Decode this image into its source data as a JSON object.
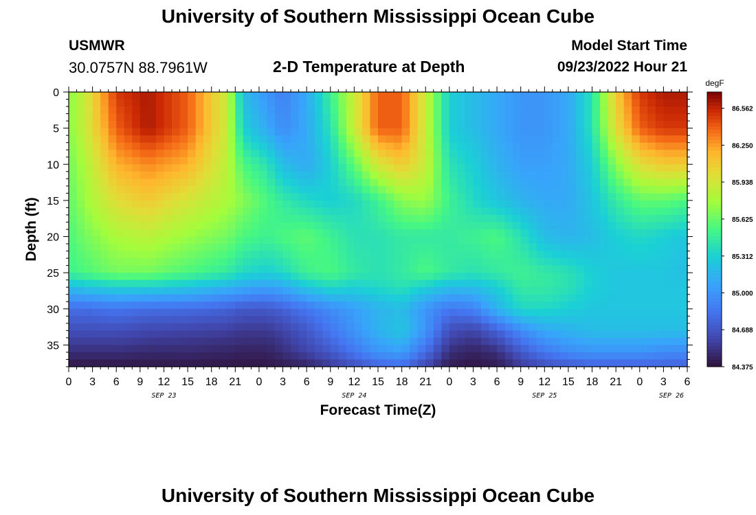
{
  "header": {
    "title": "University of Southern Mississippi Ocean Cube",
    "station": "USMWR",
    "coordinates": "30.0757N  88.7961W",
    "subtitle": "2-D Temperature at Depth",
    "model_start_label": "Model Start Time",
    "model_start_value": "09/23/2022 Hour 21"
  },
  "footer": {
    "title": "University of Southern Mississippi Ocean Cube"
  },
  "chart_data": {
    "type": "heatmap",
    "title": "2-D Temperature at Depth",
    "xlabel": "Forecast Time(Z)",
    "ylabel": "Depth (ft)",
    "x_tick_labels": [
      "0",
      "3",
      "6",
      "9",
      "12",
      "15",
      "18",
      "21",
      "0",
      "3",
      "6",
      "9",
      "12",
      "15",
      "18",
      "21",
      "0",
      "3",
      "6",
      "9",
      "12",
      "15",
      "18",
      "21",
      "0",
      "3",
      "6"
    ],
    "x_day_labels": [
      "SEP 23",
      "SEP 24",
      "SEP 25",
      "SEP 26"
    ],
    "y_tick_labels": [
      "0",
      "5",
      "10",
      "15",
      "20",
      "25",
      "30",
      "35"
    ],
    "ylim": [
      0,
      38
    ],
    "x_range_hours": [
      0,
      78
    ],
    "colorbar": {
      "unit": "degF",
      "labels": [
        "86.562",
        "86.250",
        "85.938",
        "85.625",
        "85.312",
        "85.000",
        "84.688",
        "84.375"
      ],
      "min": 84.375,
      "max": 86.7
    },
    "column_hours": [
      0,
      2,
      6,
      10,
      15,
      20,
      22,
      25,
      27,
      30,
      33,
      36,
      39,
      42,
      45,
      48,
      51,
      54,
      57,
      60,
      63,
      66,
      69,
      72,
      75,
      78
    ],
    "row_depths_ft": [
      0,
      5,
      10,
      15,
      20,
      25,
      27,
      30,
      33,
      36,
      38
    ],
    "temperature_grid_degF": [
      [
        85.7,
        85.9,
        86.5,
        86.6,
        86.4,
        85.9,
        85.2,
        85.0,
        84.9,
        85.1,
        85.5,
        85.9,
        86.4,
        86.4,
        85.9,
        85.3,
        85.2,
        85.1,
        85.0,
        85.0,
        85.1,
        85.4,
        86.1,
        86.5,
        86.6,
        86.6
      ],
      [
        85.7,
        85.9,
        86.4,
        86.6,
        86.4,
        85.9,
        85.3,
        85.1,
        84.95,
        85.1,
        85.4,
        85.9,
        86.4,
        86.4,
        85.9,
        85.3,
        85.2,
        85.1,
        85.0,
        85.0,
        85.1,
        85.4,
        86.0,
        86.4,
        86.5,
        86.5
      ],
      [
        85.65,
        85.8,
        86.2,
        86.3,
        86.2,
        85.85,
        85.55,
        85.4,
        85.2,
        85.1,
        85.3,
        85.6,
        85.95,
        86.1,
        85.9,
        85.4,
        85.3,
        85.15,
        85.05,
        85.05,
        85.1,
        85.3,
        85.7,
        86.0,
        86.1,
        86.1
      ],
      [
        85.6,
        85.75,
        86.0,
        86.1,
        85.95,
        85.8,
        85.7,
        85.55,
        85.45,
        85.35,
        85.3,
        85.35,
        85.5,
        85.7,
        85.75,
        85.5,
        85.35,
        85.25,
        85.15,
        85.1,
        85.1,
        85.25,
        85.45,
        85.6,
        85.6,
        85.55
      ],
      [
        85.55,
        85.65,
        85.8,
        85.85,
        85.75,
        85.65,
        85.55,
        85.5,
        85.55,
        85.6,
        85.5,
        85.4,
        85.4,
        85.45,
        85.45,
        85.45,
        85.5,
        85.55,
        85.4,
        85.2,
        85.15,
        85.2,
        85.3,
        85.35,
        85.3,
        85.25
      ],
      [
        85.5,
        85.55,
        85.65,
        85.65,
        85.55,
        85.45,
        85.35,
        85.3,
        85.35,
        85.5,
        85.55,
        85.45,
        85.4,
        85.45,
        85.55,
        85.45,
        85.4,
        85.45,
        85.5,
        85.45,
        85.4,
        85.3,
        85.25,
        85.25,
        85.25,
        85.2
      ],
      [
        85.2,
        85.25,
        85.3,
        85.3,
        85.25,
        85.15,
        85.1,
        85.05,
        85.1,
        85.25,
        85.35,
        85.3,
        85.35,
        85.4,
        85.3,
        85.2,
        85.2,
        85.3,
        85.45,
        85.45,
        85.4,
        85.3,
        85.25,
        85.25,
        85.25,
        85.25
      ],
      [
        84.8,
        84.8,
        84.85,
        84.8,
        84.8,
        84.75,
        84.7,
        84.7,
        84.75,
        84.85,
        84.95,
        85.05,
        85.15,
        85.2,
        85.0,
        84.85,
        84.9,
        85.15,
        85.35,
        85.35,
        85.3,
        85.25,
        85.25,
        85.25,
        85.25,
        85.25
      ],
      [
        84.65,
        84.65,
        84.65,
        84.62,
        84.6,
        84.58,
        84.55,
        84.55,
        84.6,
        84.7,
        84.85,
        85.0,
        85.15,
        85.25,
        85.0,
        84.65,
        84.6,
        84.75,
        84.95,
        85.1,
        85.15,
        85.2,
        85.2,
        85.2,
        85.2,
        85.2
      ],
      [
        84.5,
        84.5,
        84.5,
        84.48,
        84.48,
        84.46,
        84.45,
        84.45,
        84.5,
        84.6,
        84.7,
        84.85,
        85.0,
        85.05,
        84.8,
        84.5,
        84.45,
        84.5,
        84.7,
        84.85,
        84.95,
        85.0,
        85.0,
        85.0,
        84.95,
        84.95
      ],
      [
        84.4,
        84.4,
        84.4,
        84.4,
        84.4,
        84.4,
        84.4,
        84.4,
        84.42,
        84.45,
        84.55,
        84.65,
        84.75,
        84.8,
        84.6,
        84.42,
        84.4,
        84.42,
        84.55,
        84.65,
        84.7,
        84.75,
        84.75,
        84.75,
        84.75,
        84.75
      ]
    ]
  }
}
